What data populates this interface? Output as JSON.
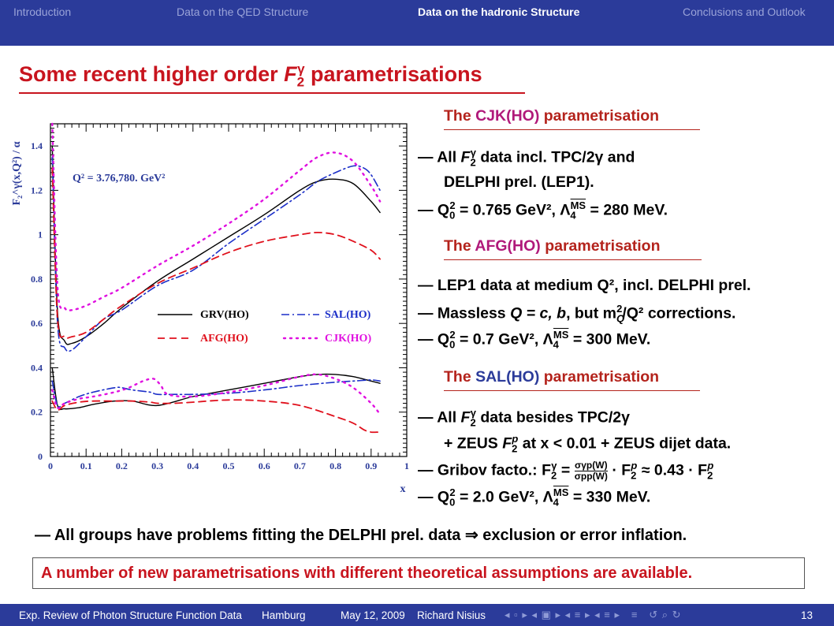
{
  "nav": [
    "Introduction",
    "Data on the QED Structure",
    "Data on the hadronic Structure",
    "Conclusions and Outlook"
  ],
  "title": {
    "pre": "Some recent higher order ",
    "f": "F",
    "sub": "2",
    "sup": "γ",
    "post": " parametrisations"
  },
  "chart_data": {
    "type": "line",
    "ylabel": "F₂^γ(x,Q²) / α",
    "xlabel": "x",
    "xlim": [
      0,
      1
    ],
    "ylim": [
      0,
      1.5
    ],
    "xticks": [
      "0",
      "0.1",
      "0.2",
      "0.3",
      "0.4",
      "0.5",
      "0.6",
      "0.7",
      "0.8",
      "0.9",
      "1"
    ],
    "yticks": [
      "0",
      "0.2",
      "0.4",
      "0.6",
      "0.8",
      "1",
      "1.2",
      "1.4"
    ],
    "annotation": "Q² = 3.76,780. GeV²",
    "legend": [
      {
        "name": "GRV(HO)",
        "color": "#000000",
        "style": "solid"
      },
      {
        "name": "SAL(HO)",
        "color": "#1c2fc8",
        "style": "dashdot"
      },
      {
        "name": "AFG(HO)",
        "color": "#e0101c",
        "style": "dashed"
      },
      {
        "name": "CJK(HO)",
        "color": "#e010e0",
        "style": "dotted"
      }
    ],
    "series": [
      {
        "name": "GRV(HO)",
        "Q2": 780,
        "x": [
          0.005,
          0.02,
          0.04,
          0.06,
          0.1,
          0.15,
          0.2,
          0.3,
          0.4,
          0.5,
          0.6,
          0.7,
          0.75,
          0.8,
          0.85,
          0.9,
          0.925
        ],
        "values": [
          1.4,
          0.65,
          0.52,
          0.51,
          0.54,
          0.6,
          0.67,
          0.79,
          0.89,
          0.99,
          1.09,
          1.2,
          1.24,
          1.25,
          1.23,
          1.15,
          1.1
        ]
      },
      {
        "name": "SAL(HO)",
        "Q2": 780,
        "x": [
          0.005,
          0.02,
          0.04,
          0.06,
          0.1,
          0.15,
          0.2,
          0.3,
          0.4,
          0.5,
          0.6,
          0.7,
          0.75,
          0.8,
          0.85,
          0.88,
          0.9,
          0.925
        ],
        "values": [
          1.35,
          0.6,
          0.49,
          0.48,
          0.54,
          0.62,
          0.66,
          0.77,
          0.84,
          0.96,
          1.07,
          1.18,
          1.24,
          1.28,
          1.31,
          1.3,
          1.27,
          1.2
        ]
      },
      {
        "name": "AFG(HO)",
        "Q2": 780,
        "x": [
          0.005,
          0.02,
          0.04,
          0.06,
          0.1,
          0.15,
          0.2,
          0.3,
          0.4,
          0.5,
          0.6,
          0.7,
          0.75,
          0.8,
          0.85,
          0.9,
          0.925
        ],
        "values": [
          1.3,
          0.62,
          0.54,
          0.54,
          0.56,
          0.62,
          0.68,
          0.78,
          0.85,
          0.92,
          0.97,
          1.0,
          1.01,
          1.0,
          0.97,
          0.93,
          0.89
        ]
      },
      {
        "name": "CJK(HO)",
        "Q2": 780,
        "x": [
          0.005,
          0.02,
          0.04,
          0.06,
          0.1,
          0.15,
          0.2,
          0.3,
          0.4,
          0.5,
          0.6,
          0.7,
          0.75,
          0.8,
          0.85,
          0.9,
          0.925
        ],
        "values": [
          1.5,
          0.76,
          0.67,
          0.66,
          0.68,
          0.72,
          0.76,
          0.86,
          0.95,
          1.05,
          1.16,
          1.29,
          1.35,
          1.37,
          1.33,
          1.22,
          1.15
        ]
      },
      {
        "name": "GRV(HO)",
        "Q2": 3.76,
        "x": [
          0.005,
          0.02,
          0.04,
          0.08,
          0.12,
          0.18,
          0.23,
          0.3,
          0.4,
          0.5,
          0.6,
          0.7,
          0.75,
          0.8,
          0.85,
          0.9,
          0.925
        ],
        "values": [
          0.4,
          0.23,
          0.215,
          0.22,
          0.235,
          0.25,
          0.25,
          0.23,
          0.27,
          0.3,
          0.33,
          0.36,
          0.37,
          0.37,
          0.36,
          0.34,
          0.33
        ]
      },
      {
        "name": "SAL(HO)",
        "Q2": 3.76,
        "x": [
          0.005,
          0.02,
          0.04,
          0.08,
          0.12,
          0.18,
          0.2,
          0.23,
          0.28,
          0.3,
          0.35,
          0.4,
          0.5,
          0.6,
          0.7,
          0.8,
          0.85,
          0.9,
          0.925
        ],
        "values": [
          0.34,
          0.23,
          0.24,
          0.27,
          0.29,
          0.31,
          0.31,
          0.3,
          0.29,
          0.28,
          0.28,
          0.28,
          0.285,
          0.3,
          0.32,
          0.335,
          0.34,
          0.345,
          0.34
        ]
      },
      {
        "name": "AFG(HO)",
        "Q2": 3.76,
        "x": [
          0.005,
          0.02,
          0.04,
          0.08,
          0.12,
          0.18,
          0.23,
          0.28,
          0.3,
          0.35,
          0.4,
          0.5,
          0.6,
          0.7,
          0.8,
          0.85,
          0.88,
          0.9,
          0.92
        ],
        "values": [
          0.25,
          0.21,
          0.23,
          0.245,
          0.25,
          0.25,
          0.25,
          0.245,
          0.24,
          0.24,
          0.245,
          0.255,
          0.25,
          0.23,
          0.18,
          0.15,
          0.12,
          0.11,
          0.11
        ]
      },
      {
        "name": "CJK(HO)",
        "Q2": 3.76,
        "x": [
          0.005,
          0.02,
          0.04,
          0.08,
          0.12,
          0.18,
          0.22,
          0.26,
          0.29,
          0.31,
          0.33,
          0.4,
          0.5,
          0.6,
          0.7,
          0.75,
          0.8,
          0.85,
          0.9,
          0.925
        ],
        "values": [
          0.3,
          0.22,
          0.24,
          0.26,
          0.27,
          0.29,
          0.31,
          0.34,
          0.35,
          0.32,
          0.28,
          0.27,
          0.29,
          0.32,
          0.36,
          0.37,
          0.35,
          0.31,
          0.24,
          0.19
        ]
      }
    ]
  },
  "cjk": {
    "head_a": "The ",
    "head_b": "CJK(HO)",
    "head_c": " parametrisation",
    "l1_a": "— All ",
    "l1_b": " data incl. TPC/2γ and",
    "l2": "DELPHI prel. (LEP1).",
    "l3_a": "— Q",
    "l3_b": " = 0.765 GeV², Λ",
    "l3_c": " = 280 MeV."
  },
  "afg": {
    "head_a": "The ",
    "head_b": "AFG(HO)",
    "head_c": " parametrisation",
    "l1": "— LEP1 data at medium Q², incl. DELPHI prel.",
    "l2_a": "— Massless ",
    "l2_b": "Q = c, b",
    "l2_c": ", but m",
    "l2_d": "/Q² corrections.",
    "l3_a": "— Q",
    "l3_b": " = 0.7 GeV², Λ",
    "l3_c": " = 300 MeV."
  },
  "sal": {
    "head_a": "The ",
    "head_b": "SAL(HO)",
    "head_c": " parametrisation",
    "l1_a": "— All ",
    "l1_b": " data besides TPC/2γ",
    "l2_a": "+ ZEUS ",
    "l2_b": " at x < 0.01 + ZEUS dijet data.",
    "l3_a": "— Gribov facto.: F",
    "l3_b": " = ",
    "l3_num": "σγp(W)",
    "l3_den": "σpp(W)",
    "l3_c": " · F",
    "l3_d": " ≈ 0.43 · F",
    "l4_a": "— Q",
    "l4_b": " = 2.0 GeV², Λ",
    "l4_c": " = 330 MeV."
  },
  "ms": "MS",
  "note": "— All groups have problems fitting the DELPHI prel. data ⇒ exclusion or error inflation.",
  "box": "A number of new parametrisations with different theoretical assumptions are available.",
  "footer": {
    "a": "Exp. Review of Photon Structure Function Data",
    "b": "Hamburg",
    "c": "May 12, 2009",
    "d": "Richard Nisius",
    "page": "13"
  }
}
